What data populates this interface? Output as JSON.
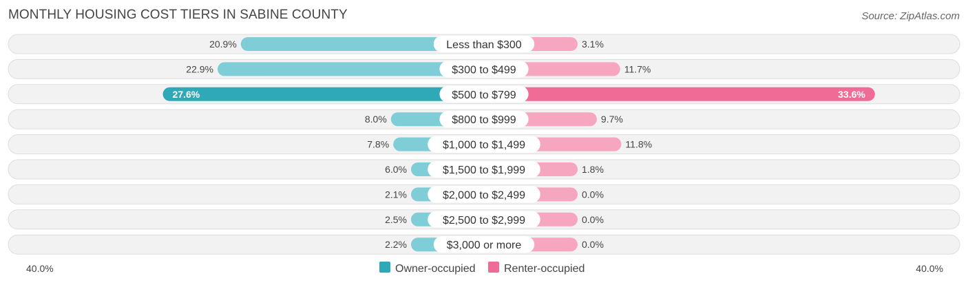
{
  "title": "MONTHLY HOUSING COST TIERS IN SABINE COUNTY",
  "source": "Source: ZipAtlas.com",
  "chart_data": {
    "type": "bar",
    "orientation": "horizontal-diverging",
    "categories": [
      "Less than $300",
      "$300 to $499",
      "$500 to $799",
      "$800 to $999",
      "$1,000 to $1,499",
      "$1,500 to $1,999",
      "$2,000 to $2,499",
      "$2,500 to $2,999",
      "$3,000 or more"
    ],
    "series": [
      {
        "name": "Owner-occupied",
        "values": [
          20.9,
          22.9,
          27.6,
          8.0,
          7.8,
          6.0,
          2.1,
          2.5,
          2.2
        ],
        "labels": [
          "20.9%",
          "22.9%",
          "27.6%",
          "8.0%",
          "7.8%",
          "6.0%",
          "2.1%",
          "2.5%",
          "2.2%"
        ],
        "color": "#2fa9b8",
        "light_color": "#7fcdd6"
      },
      {
        "name": "Renter-occupied",
        "values": [
          3.1,
          11.7,
          33.6,
          9.7,
          11.8,
          1.8,
          0.0,
          0.0,
          0.0
        ],
        "labels": [
          "3.1%",
          "11.7%",
          "33.6%",
          "9.7%",
          "11.8%",
          "1.8%",
          "0.0%",
          "0.0%",
          "0.0%"
        ],
        "color": "#f06b96",
        "light_color": "#f7a6c0"
      }
    ],
    "xlim": [
      -40,
      40
    ],
    "axis_labels": {
      "left": "40.0%",
      "right": "40.0%"
    },
    "legend_position": "bottom-center",
    "grid": false
  }
}
